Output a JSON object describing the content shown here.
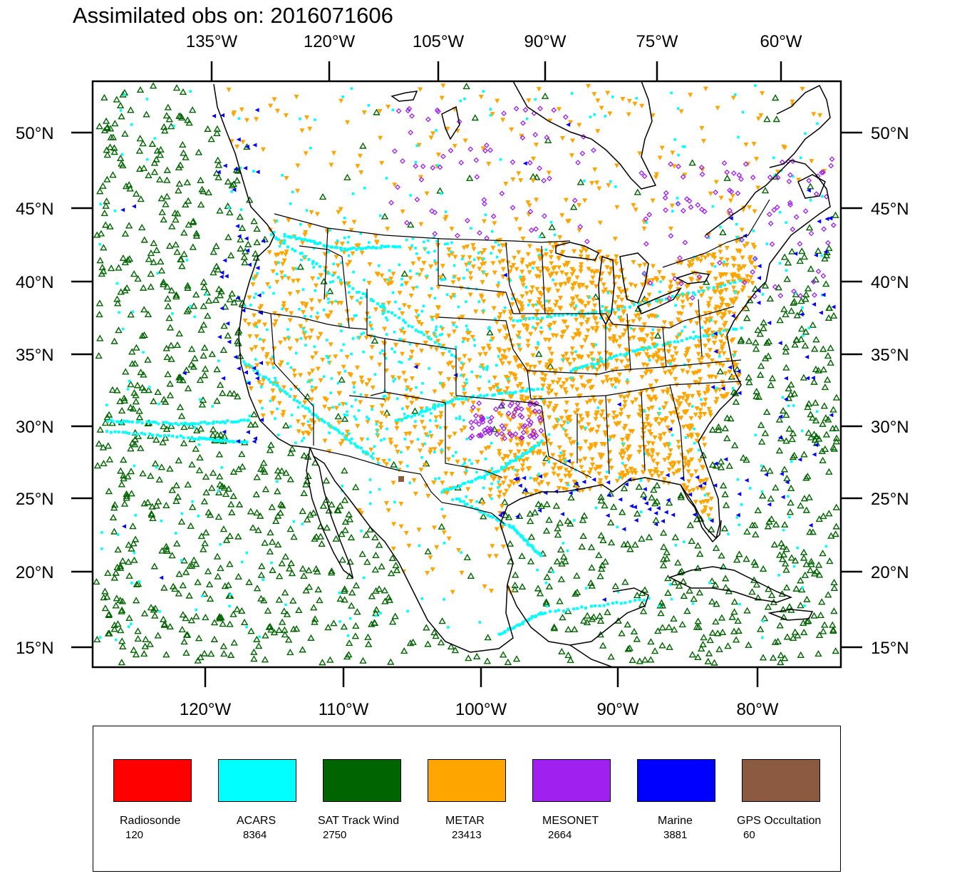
{
  "title": "Assimilated obs on: 2016071606",
  "colors": {
    "radiosonde": "#ff0000",
    "acars": "#00ffff",
    "sat_track_wind": "#006400",
    "metar": "#ffa500",
    "mesonet": "#a020f0",
    "marine": "#0000ff",
    "gps": "#8b5a40"
  },
  "axes": {
    "top_lon_labels": [
      "135°W",
      "120°W",
      "105°W",
      "90°W",
      "75°W",
      "60°W"
    ],
    "bottom_lon_labels": [
      "120°W",
      "110°W",
      "100°W",
      "90°W",
      "80°W"
    ],
    "lat_labels": [
      "50°N",
      "45°N",
      "40°N",
      "35°N",
      "30°N",
      "25°N",
      "20°N",
      "15°N"
    ]
  },
  "legend": {
    "items": [
      {
        "label": "Radiosonde",
        "count": "120",
        "color": "#ff0000"
      },
      {
        "label": "ACARS",
        "count": "8364",
        "color": "#00ffff"
      },
      {
        "label": "SAT Track Wind",
        "count": "2750",
        "color": "#006400"
      },
      {
        "label": "METAR",
        "count": "23413",
        "color": "#ffa500"
      },
      {
        "label": "MESONET",
        "count": "2664",
        "color": "#a020f0"
      },
      {
        "label": "Marine",
        "count": "3881",
        "color": "#0000ff"
      },
      {
        "label": "GPS Occultation",
        "count": "60",
        "color": "#8b5a40"
      }
    ]
  }
}
